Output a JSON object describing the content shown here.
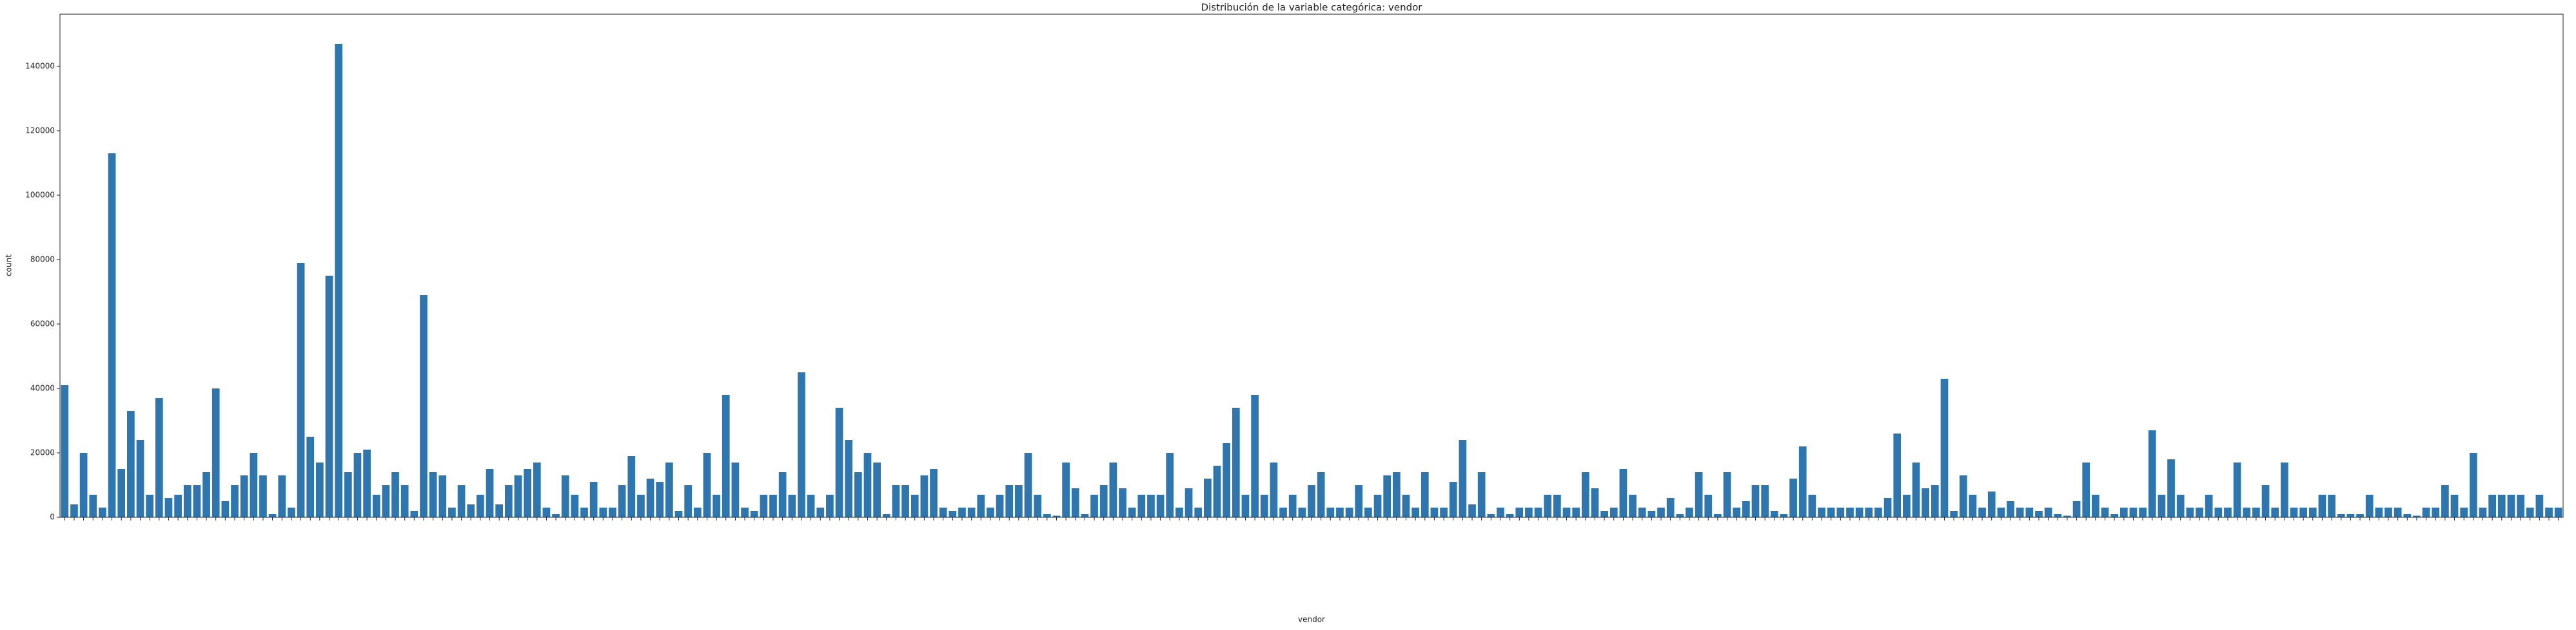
{
  "chart_data": {
    "type": "bar",
    "title": "Distribución de la variable categórica: vendor",
    "xlabel": "vendor",
    "ylabel": "count",
    "color": "#2f76ae",
    "ylim": [
      0,
      156200
    ],
    "yticks": [
      0,
      20000,
      40000,
      60000,
      80000,
      100000,
      120000,
      140000
    ],
    "categories": [
      null,
      null,
      null,
      null,
      null,
      null,
      null,
      null,
      null,
      null,
      null,
      null,
      null,
      null,
      null,
      null,
      null,
      null,
      null,
      null,
      null,
      null,
      null,
      null,
      null,
      null,
      null,
      null,
      null,
      null,
      null,
      null,
      null,
      null,
      null,
      null,
      null,
      null,
      null,
      null,
      null,
      null,
      null,
      null,
      null,
      null,
      null,
      null,
      null,
      null,
      null,
      null,
      null,
      null,
      null,
      null,
      null,
      null,
      null,
      null,
      null,
      null,
      null,
      null,
      null,
      null,
      null,
      null,
      null,
      null,
      null,
      null,
      null,
      null,
      null,
      null,
      null,
      null,
      null,
      null,
      null,
      null,
      null,
      null,
      null,
      null,
      null,
      null,
      null,
      null,
      null,
      null,
      null,
      null,
      null,
      null,
      null,
      null,
      null,
      null,
      null,
      null,
      null,
      null,
      null,
      null,
      null,
      null,
      null,
      null,
      null,
      null,
      null,
      null,
      null,
      null,
      null,
      null,
      null,
      null,
      null,
      null,
      null,
      null,
      null,
      null,
      null,
      null,
      null,
      null,
      null,
      null,
      null,
      null,
      null,
      null,
      null,
      null,
      null,
      null,
      null,
      null,
      null,
      null,
      null,
      null,
      null,
      null,
      null,
      null,
      null,
      null,
      null,
      null,
      null,
      null,
      null,
      null,
      null,
      null,
      null,
      null,
      null,
      null,
      null,
      null,
      null,
      null,
      null,
      null,
      null,
      null,
      null,
      null,
      null,
      null,
      null,
      null,
      null,
      null,
      null,
      null,
      null,
      null,
      null,
      null,
      null,
      null,
      null,
      null,
      null,
      null,
      null,
      null,
      null,
      null,
      null,
      null,
      null,
      null,
      null,
      null,
      null,
      null,
      null,
      null,
      null,
      null,
      null,
      null,
      null,
      null,
      null,
      null,
      null,
      null,
      null,
      null,
      null,
      null,
      null,
      null,
      null,
      null,
      null,
      null,
      null,
      null,
      null,
      null,
      null,
      null,
      null,
      null,
      null,
      null,
      null,
      null,
      null,
      null,
      null,
      null,
      null,
      null,
      null,
      null,
      null,
      null,
      null,
      null,
      null,
      null,
      null,
      null,
      null,
      null,
      null,
      null,
      null,
      null,
      null,
      null,
      null,
      null,
      null
    ],
    "values": [
      41000,
      4000,
      20000,
      7000,
      3000,
      113000,
      15000,
      33000,
      24000,
      7000,
      37000,
      6000,
      7000,
      10000,
      10000,
      14000,
      40000,
      5000,
      10000,
      13000,
      20000,
      13000,
      1000,
      13000,
      3000,
      79000,
      25000,
      17000,
      75000,
      147000,
      14000,
      20000,
      21000,
      7000,
      10000,
      14000,
      10000,
      2000,
      69000,
      14000,
      13000,
      3000,
      10000,
      4000,
      7000,
      15000,
      4000,
      10000,
      13000,
      15000,
      17000,
      3000,
      1000,
      13000,
      7000,
      3000,
      11000,
      3000,
      3000,
      10000,
      19000,
      7000,
      12000,
      11000,
      17000,
      2000,
      10000,
      3000,
      20000,
      7000,
      38000,
      17000,
      3000,
      2000,
      7000,
      7000,
      14000,
      7000,
      45000,
      7000,
      3000,
      7000,
      34000,
      24000,
      14000,
      20000,
      17000,
      1000,
      10000,
      10000,
      7000,
      13000,
      15000,
      3000,
      2000,
      3000,
      3000,
      7000,
      3000,
      7000,
      10000,
      10000,
      20000,
      7000,
      1000,
      500,
      17000,
      9000,
      1000,
      7000,
      10000,
      17000,
      9000,
      3000,
      7000,
      7000,
      7000,
      20000,
      3000,
      9000,
      3000,
      12000,
      16000,
      23000,
      34000,
      7000,
      38000,
      7000,
      17000,
      3000,
      7000,
      3000,
      10000,
      14000,
      3000,
      3000,
      3000,
      10000,
      3000,
      7000,
      13000,
      14000,
      7000,
      3000,
      14000,
      3000,
      3000,
      11000,
      24000,
      4000,
      14000,
      1000,
      3000,
      1000,
      3000,
      3000,
      3000,
      7000,
      7000,
      3000,
      3000,
      14000,
      9000,
      2000,
      3000,
      15000,
      7000,
      3000,
      2000,
      3000,
      6000,
      1000,
      3000,
      14000,
      7000,
      1000,
      14000,
      3000,
      5000,
      10000,
      10000,
      2000,
      1000,
      12000,
      22000,
      7000,
      3000,
      3000,
      3000,
      3000,
      3000,
      3000,
      3000,
      6000,
      26000,
      7000,
      17000,
      9000,
      10000,
      43000,
      2000,
      13000,
      7000,
      3000,
      8000,
      3000,
      5000,
      3000,
      3000,
      2000,
      3000,
      1000,
      500,
      5000,
      17000,
      7000,
      3000,
      1000,
      3000,
      3000,
      3000,
      27000,
      7000,
      18000,
      7000,
      3000,
      3000,
      7000,
      3000,
      3000,
      17000,
      3000,
      3000,
      10000,
      3000,
      17000,
      3000,
      3000,
      3000,
      7000,
      7000,
      1000,
      1000,
      1000,
      7000,
      3000,
      3000,
      3000,
      1000,
      500,
      3000,
      3000,
      10000,
      7000,
      3000,
      20000,
      3000,
      7000,
      7000,
      7000,
      7000,
      3000,
      7000,
      3000,
      3000
    ]
  }
}
